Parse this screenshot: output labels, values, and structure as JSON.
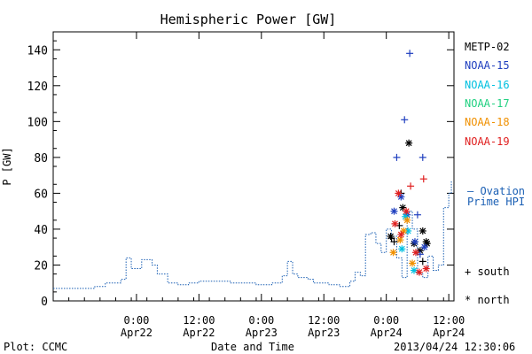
{
  "chart_data": {
    "type": "scatter",
    "title": "Hemispheric Power [GW]",
    "xlabel": "Date and Time",
    "ylabel": "P [GW]",
    "ylim": [
      0,
      150
    ],
    "yticks": [
      0,
      20,
      40,
      60,
      80,
      100,
      120,
      140
    ],
    "xlim": [
      "2013-04-21 08:00",
      "2013-04-24 13:00"
    ],
    "xticks": [
      {
        "t": "2013-04-22 00:00",
        "time": "0:00",
        "date": "Apr22"
      },
      {
        "t": "2013-04-22 12:00",
        "time": "12:00",
        "date": "Apr22"
      },
      {
        "t": "2013-04-23 00:00",
        "time": "0:00",
        "date": "Apr23"
      },
      {
        "t": "2013-04-23 12:00",
        "time": "12:00",
        "date": "Apr23"
      },
      {
        "t": "2013-04-24 00:00",
        "time": "0:00",
        "date": "Apr24"
      },
      {
        "t": "2013-04-24 12:00",
        "time": "12:00",
        "date": "Apr24"
      }
    ],
    "footer_left": "Plot: CCMC",
    "footer_right": "2013/04/24 12:30:06",
    "legend": {
      "placement": "right",
      "marker_south": "+ south",
      "marker_north": "* north",
      "ovation_line1": "— Ovation",
      "ovation_line2": "Prime HPI"
    },
    "ovation": {
      "name": "Ovation Prime HPI",
      "color": "#1a5fb4",
      "points": [
        [
          "2013-04-21 08:00",
          7
        ],
        [
          "2013-04-21 14:00",
          7
        ],
        [
          "2013-04-21 16:00",
          8
        ],
        [
          "2013-04-21 18:00",
          10
        ],
        [
          "2013-04-21 21:00",
          12
        ],
        [
          "2013-04-21 22:00",
          24
        ],
        [
          "2013-04-21 23:00",
          18
        ],
        [
          "2013-04-22 01:00",
          23
        ],
        [
          "2013-04-22 03:00",
          20
        ],
        [
          "2013-04-22 04:00",
          15
        ],
        [
          "2013-04-22 06:00",
          10
        ],
        [
          "2013-04-22 08:00",
          9
        ],
        [
          "2013-04-22 10:00",
          10
        ],
        [
          "2013-04-22 12:00",
          11
        ],
        [
          "2013-04-22 17:00",
          11
        ],
        [
          "2013-04-22 18:00",
          10
        ],
        [
          "2013-04-22 23:00",
          9
        ],
        [
          "2013-04-23 02:00",
          10
        ],
        [
          "2013-04-23 03:00",
          10
        ],
        [
          "2013-04-23 04:00",
          14
        ],
        [
          "2013-04-23 05:00",
          22
        ],
        [
          "2013-04-23 06:00",
          15
        ],
        [
          "2013-04-23 07:00",
          13
        ],
        [
          "2013-04-23 09:00",
          12
        ],
        [
          "2013-04-23 10:00",
          10
        ],
        [
          "2013-04-23 13:00",
          9
        ],
        [
          "2013-04-23 15:00",
          8
        ],
        [
          "2013-04-23 17:00",
          11
        ],
        [
          "2013-04-23 18:00",
          16
        ],
        [
          "2013-04-23 19:00",
          14
        ],
        [
          "2013-04-23 20:00",
          37
        ],
        [
          "2013-04-23 21:00",
          38
        ],
        [
          "2013-04-23 22:00",
          32
        ],
        [
          "2013-04-23 23:00",
          27
        ],
        [
          "2013-04-24 00:00",
          40
        ],
        [
          "2013-04-24 01:00",
          36
        ],
        [
          "2013-04-24 02:00",
          24
        ],
        [
          "2013-04-24 03:00",
          13
        ],
        [
          "2013-04-24 04:00",
          50
        ],
        [
          "2013-04-24 05:00",
          40
        ],
        [
          "2013-04-24 06:00",
          15
        ],
        [
          "2013-04-24 07:00",
          13
        ],
        [
          "2013-04-24 08:00",
          25
        ],
        [
          "2013-04-24 09:00",
          17
        ],
        [
          "2013-04-24 10:00",
          20
        ],
        [
          "2013-04-24 11:00",
          52
        ],
        [
          "2013-04-24 12:00",
          60
        ],
        [
          "2013-04-24 12:30",
          67
        ]
      ]
    },
    "series": [
      {
        "name": "METP-02",
        "color": "#000000",
        "points": [
          {
            "t": "2013-04-24 01:00",
            "v": 35,
            "m": "south"
          },
          {
            "t": "2013-04-24 01:30",
            "v": 33,
            "m": "south"
          },
          {
            "t": "2013-04-24 02:30",
            "v": 42,
            "m": "south"
          },
          {
            "t": "2013-04-24 02:50",
            "v": 60,
            "m": "south"
          },
          {
            "t": "2013-04-24 04:20",
            "v": 88,
            "m": "north"
          },
          {
            "t": "2013-04-24 05:20",
            "v": 32,
            "m": "north"
          },
          {
            "t": "2013-04-24 06:30",
            "v": 28,
            "m": "north"
          },
          {
            "t": "2013-04-24 07:00",
            "v": 39,
            "m": "north"
          },
          {
            "t": "2013-04-24 07:40",
            "v": 33,
            "m": "north"
          },
          {
            "t": "2013-04-24 07:50",
            "v": 32,
            "m": "north"
          },
          {
            "t": "2013-04-24 07:00",
            "v": 22,
            "m": "south"
          },
          {
            "t": "2013-04-24 03:10",
            "v": 52,
            "m": "north"
          },
          {
            "t": "2013-04-24 00:50",
            "v": 36,
            "m": "north"
          }
        ]
      },
      {
        "name": "NOAA-15",
        "color": "#1f3fbf",
        "points": [
          {
            "t": "2013-04-24 02:00",
            "v": 80,
            "m": "south"
          },
          {
            "t": "2013-04-24 03:30",
            "v": 101,
            "m": "south"
          },
          {
            "t": "2013-04-24 04:30",
            "v": 138,
            "m": "south"
          },
          {
            "t": "2013-04-24 07:00",
            "v": 80,
            "m": "south"
          },
          {
            "t": "2013-04-24 01:30",
            "v": 50,
            "m": "north"
          },
          {
            "t": "2013-04-24 02:50",
            "v": 58,
            "m": "north"
          },
          {
            "t": "2013-04-24 04:00",
            "v": 48,
            "m": "north"
          },
          {
            "t": "2013-04-24 06:00",
            "v": 48,
            "m": "south"
          },
          {
            "t": "2013-04-24 05:30",
            "v": 33,
            "m": "north"
          },
          {
            "t": "2013-04-24 06:30",
            "v": 26,
            "m": "south"
          },
          {
            "t": "2013-04-24 07:20",
            "v": 30,
            "m": "north"
          }
        ]
      },
      {
        "name": "NOAA-16",
        "color": "#00c0e0",
        "points": [
          {
            "t": "2013-04-24 03:00",
            "v": 29,
            "m": "north"
          },
          {
            "t": "2013-04-24 04:10",
            "v": 39,
            "m": "north"
          },
          {
            "t": "2013-04-24 05:20",
            "v": 17,
            "m": "north"
          },
          {
            "t": "2013-04-24 03:40",
            "v": 47,
            "m": "north"
          }
        ]
      },
      {
        "name": "NOAA-17",
        "color": "#20d080",
        "points": []
      },
      {
        "name": "NOAA-18",
        "color": "#f09000",
        "points": [
          {
            "t": "2013-04-24 01:20",
            "v": 27,
            "m": "north"
          },
          {
            "t": "2013-04-24 02:40",
            "v": 34,
            "m": "north"
          },
          {
            "t": "2013-04-24 04:00",
            "v": 45,
            "m": "north"
          },
          {
            "t": "2013-04-24 05:00",
            "v": 21,
            "m": "north"
          },
          {
            "t": "2013-04-24 03:20",
            "v": 39,
            "m": "north"
          }
        ]
      },
      {
        "name": "NOAA-19",
        "color": "#e02020",
        "points": [
          {
            "t": "2013-04-24 02:20",
            "v": 60,
            "m": "north"
          },
          {
            "t": "2013-04-24 04:40",
            "v": 64,
            "m": "south"
          },
          {
            "t": "2013-04-24 07:10",
            "v": 68,
            "m": "south"
          },
          {
            "t": "2013-04-24 01:40",
            "v": 43,
            "m": "north"
          },
          {
            "t": "2013-04-24 03:50",
            "v": 50,
            "m": "north"
          },
          {
            "t": "2013-04-24 05:40",
            "v": 27,
            "m": "north"
          },
          {
            "t": "2013-04-24 06:20",
            "v": 16,
            "m": "north"
          },
          {
            "t": "2013-04-24 07:40",
            "v": 18,
            "m": "north"
          },
          {
            "t": "2013-04-24 02:50",
            "v": 37,
            "m": "north"
          }
        ]
      }
    ]
  }
}
